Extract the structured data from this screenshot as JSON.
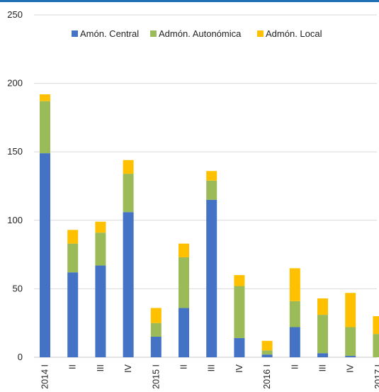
{
  "chart_data": {
    "type": "bar",
    "stacked": true,
    "categories": [
      "2014 I",
      "II",
      "III",
      "IV",
      "2015 I",
      "II",
      "III",
      "IV",
      "2016 I",
      "II",
      "III",
      "IV",
      "2017 I"
    ],
    "series": [
      {
        "name": "Amón. Central",
        "color": "#4472c4",
        "values": [
          149,
          62,
          67,
          106,
          15,
          36,
          115,
          14,
          2,
          22,
          3,
          1,
          0
        ]
      },
      {
        "name": "Admón. Autonómica",
        "color": "#9bbb59",
        "values": [
          38,
          21,
          24,
          28,
          10,
          37,
          14,
          38,
          3,
          19,
          28,
          21,
          17
        ]
      },
      {
        "name": "Admón. Local",
        "color": "#ffc000",
        "values": [
          5,
          10,
          8,
          10,
          11,
          10,
          7,
          8,
          7,
          24,
          12,
          25,
          13
        ]
      }
    ],
    "yticks": [
      "0",
      "50",
      "100",
      "150",
      "200",
      "250"
    ],
    "ylim": [
      0,
      250
    ],
    "grid": true,
    "legend_position": "top"
  }
}
